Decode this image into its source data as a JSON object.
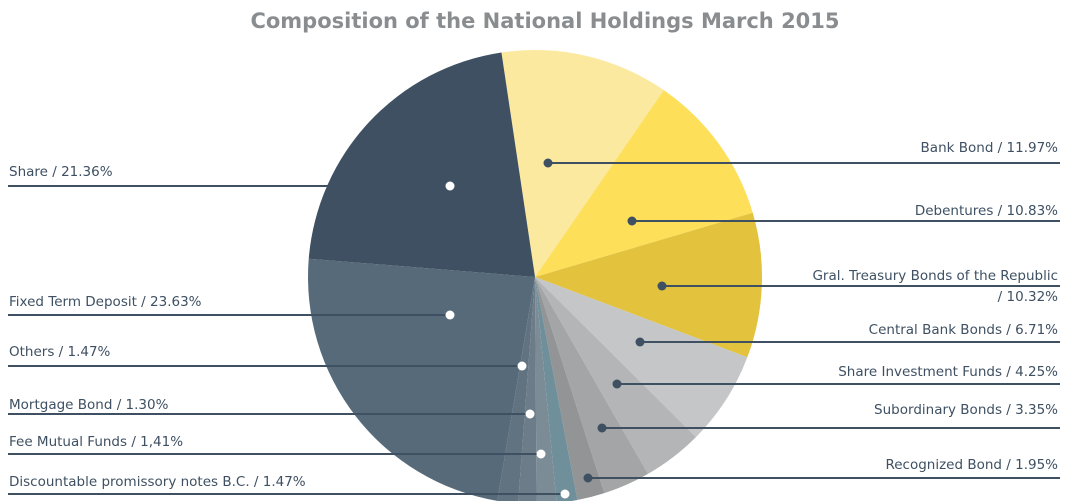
{
  "chart_data": {
    "type": "pie",
    "title": "Composition of the National Holdings March 2015",
    "categories": [
      "Bank Bond",
      "Debentures",
      "Gral. Treasury Bonds of the Republic",
      "Central Bank Bonds",
      "Share Investment Funds",
      "Subordinary Bonds",
      "Recognized Bond",
      "Discountable promissory notes B.C.",
      "Fee Mutual Funds",
      "Mortgage Bond",
      "Others",
      "Fixed Term Deposit",
      "Share"
    ],
    "values": [
      11.97,
      10.83,
      10.32,
      6.71,
      4.25,
      3.35,
      1.95,
      1.47,
      1.41,
      1.3,
      1.47,
      23.63,
      21.36
    ],
    "value_labels": [
      "Bank Bond / 11.97%",
      "Debentures / 10.83%",
      [
        "Gral. Treasury Bonds of the Republic",
        "/ 10.32%"
      ],
      "Central Bank Bonds / 6.71%",
      "Share Investment Funds  / 4.25%",
      "Subordinary Bonds / 3.35%",
      "Recognized Bond / 1.95%",
      "Discountable promissory notes B.C. / 1.47%",
      "Fee Mutual Funds / 1,41%",
      "Mortgage Bond / 1.30%",
      "Others / 1.47%",
      "Fixed Term Deposit / 23.63%",
      "Share / 21.36%"
    ],
    "colors": [
      "#fce9a0",
      "#fddf5a",
      "#e3c23e",
      "#c4c6c7",
      "#b3b5b6",
      "#a3a5a6",
      "#929495",
      "#6f8f9b",
      "#7b8c97",
      "#6c7d89",
      "#617280",
      "#566a7a",
      "#3e5062"
    ]
  }
}
